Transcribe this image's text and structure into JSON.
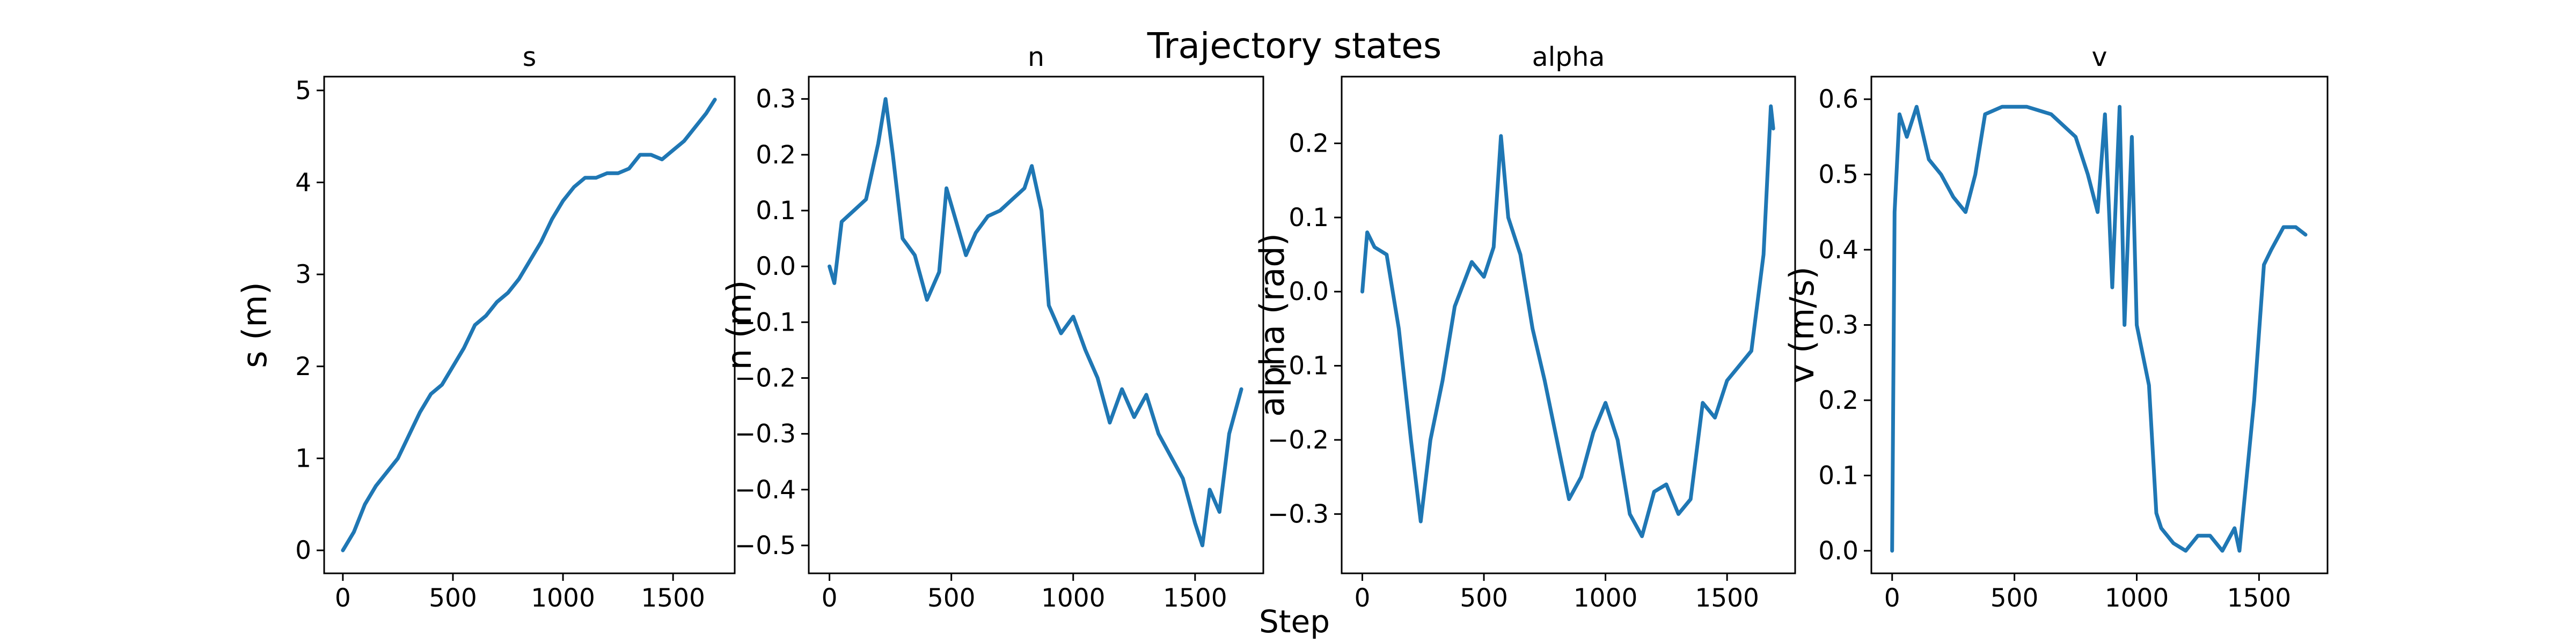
{
  "figure": {
    "title": "Trajectory states",
    "xlabel": "Step"
  },
  "chart_data": [
    {
      "type": "line",
      "title": "s",
      "xlabel": "",
      "ylabel": "s (m)",
      "xlim": [
        -85,
        1780
      ],
      "ylim": [
        -0.25,
        5.15
      ],
      "xticks": [
        0,
        500,
        1000,
        1500
      ],
      "yticks": [
        0,
        1,
        2,
        3,
        4,
        5
      ],
      "grid": false,
      "color": "#1f77b4",
      "series": [
        {
          "x": [
            0,
            50,
            100,
            150,
            200,
            250,
            300,
            350,
            400,
            450,
            500,
            550,
            600,
            650,
            700,
            750,
            800,
            850,
            900,
            950,
            1000,
            1050,
            1100,
            1150,
            1200,
            1250,
            1300,
            1350,
            1400,
            1450,
            1500,
            1550,
            1600,
            1650,
            1690
          ],
          "y": [
            0.0,
            0.2,
            0.5,
            0.7,
            0.85,
            1.0,
            1.25,
            1.5,
            1.7,
            1.8,
            2.0,
            2.2,
            2.45,
            2.55,
            2.7,
            2.8,
            2.95,
            3.15,
            3.35,
            3.6,
            3.8,
            3.95,
            4.05,
            4.05,
            4.1,
            4.1,
            4.15,
            4.3,
            4.3,
            4.25,
            4.35,
            4.45,
            4.6,
            4.75,
            4.9
          ]
        }
      ]
    },
    {
      "type": "line",
      "title": "n",
      "xlabel": "",
      "ylabel": "n (m)",
      "xlim": [
        -85,
        1780
      ],
      "ylim": [
        -0.55,
        0.34
      ],
      "xticks": [
        0,
        500,
        1000,
        1500
      ],
      "yticks": [
        -0.5,
        -0.4,
        -0.3,
        -0.2,
        -0.1,
        0.0,
        0.1,
        0.2,
        0.3
      ],
      "grid": false,
      "color": "#1f77b4",
      "series": [
        {
          "x": [
            0,
            20,
            50,
            100,
            150,
            200,
            230,
            260,
            300,
            350,
            400,
            450,
            480,
            520,
            560,
            600,
            650,
            700,
            750,
            800,
            830,
            870,
            900,
            950,
            1000,
            1050,
            1100,
            1150,
            1200,
            1250,
            1300,
            1350,
            1400,
            1450,
            1500,
            1530,
            1560,
            1600,
            1640,
            1690
          ],
          "y": [
            0.0,
            -0.03,
            0.08,
            0.1,
            0.12,
            0.22,
            0.3,
            0.2,
            0.05,
            0.02,
            -0.06,
            -0.01,
            0.14,
            0.08,
            0.02,
            0.06,
            0.09,
            0.1,
            0.12,
            0.14,
            0.18,
            0.1,
            -0.07,
            -0.12,
            -0.09,
            -0.15,
            -0.2,
            -0.28,
            -0.22,
            -0.27,
            -0.23,
            -0.3,
            -0.34,
            -0.38,
            -0.46,
            -0.5,
            -0.4,
            -0.44,
            -0.3,
            -0.22
          ]
        }
      ]
    },
    {
      "type": "line",
      "title": "alpha",
      "xlabel": "",
      "ylabel": "alpha (rad)",
      "xlim": [
        -85,
        1780
      ],
      "ylim": [
        -0.38,
        0.29
      ],
      "xticks": [
        0,
        500,
        1000,
        1500
      ],
      "yticks": [
        -0.3,
        -0.2,
        -0.1,
        0.0,
        0.1,
        0.2
      ],
      "grid": false,
      "color": "#1f77b4",
      "series": [
        {
          "x": [
            0,
            20,
            50,
            100,
            150,
            200,
            240,
            280,
            330,
            380,
            450,
            500,
            540,
            570,
            600,
            650,
            700,
            750,
            800,
            850,
            900,
            950,
            1000,
            1050,
            1100,
            1150,
            1200,
            1250,
            1300,
            1350,
            1400,
            1450,
            1500,
            1550,
            1600,
            1650,
            1680,
            1690
          ],
          "y": [
            0.0,
            0.08,
            0.06,
            0.05,
            -0.05,
            -0.2,
            -0.31,
            -0.2,
            -0.12,
            -0.02,
            0.04,
            0.02,
            0.06,
            0.21,
            0.1,
            0.05,
            -0.05,
            -0.12,
            -0.2,
            -0.28,
            -0.25,
            -0.19,
            -0.15,
            -0.2,
            -0.3,
            -0.33,
            -0.27,
            -0.26,
            -0.3,
            -0.28,
            -0.15,
            -0.17,
            -0.12,
            -0.1,
            -0.08,
            0.05,
            0.25,
            0.22
          ]
        }
      ]
    },
    {
      "type": "line",
      "title": "v",
      "xlabel": "",
      "ylabel": "v (m/s)",
      "xlim": [
        -85,
        1780
      ],
      "ylim": [
        -0.03,
        0.63
      ],
      "xticks": [
        0,
        500,
        1000,
        1500
      ],
      "yticks": [
        0.0,
        0.1,
        0.2,
        0.3,
        0.4,
        0.5,
        0.6
      ],
      "grid": false,
      "color": "#1f77b4",
      "series": [
        {
          "x": [
            0,
            10,
            30,
            60,
            100,
            150,
            200,
            250,
            300,
            340,
            380,
            450,
            550,
            650,
            750,
            800,
            840,
            870,
            900,
            930,
            950,
            980,
            1000,
            1050,
            1080,
            1100,
            1150,
            1200,
            1250,
            1300,
            1350,
            1400,
            1420,
            1450,
            1480,
            1520,
            1550,
            1600,
            1650,
            1690
          ],
          "y": [
            0.0,
            0.45,
            0.58,
            0.55,
            0.59,
            0.52,
            0.5,
            0.47,
            0.45,
            0.5,
            0.58,
            0.59,
            0.59,
            0.58,
            0.55,
            0.5,
            0.45,
            0.58,
            0.35,
            0.59,
            0.3,
            0.55,
            0.3,
            0.22,
            0.05,
            0.03,
            0.01,
            0.0,
            0.02,
            0.02,
            0.0,
            0.03,
            0.0,
            0.1,
            0.2,
            0.38,
            0.4,
            0.43,
            0.43,
            0.42
          ]
        }
      ]
    }
  ]
}
